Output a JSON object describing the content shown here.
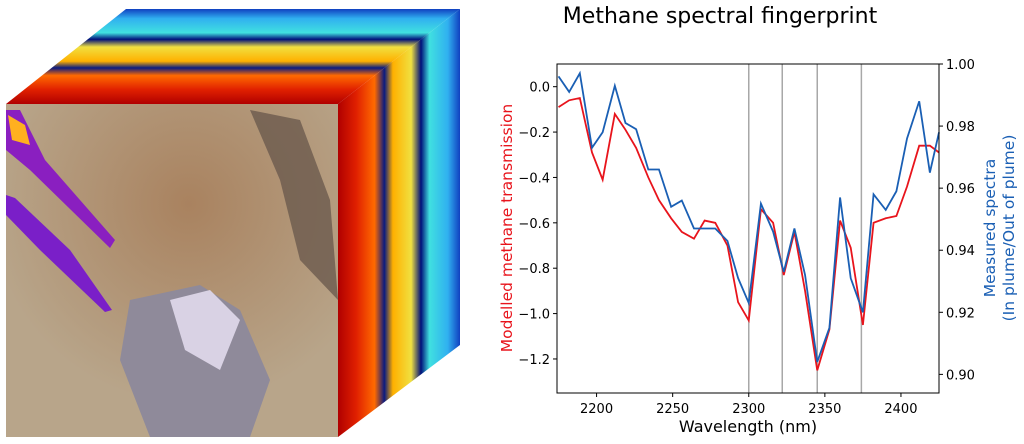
{
  "figure": {
    "cube_image": "hyperspectral data cube with satellite image front face and methane plume overlay",
    "colors": {
      "modelled": "#e8141c",
      "measured": "#1a5fb4",
      "band_lines": "#a8a8a8"
    }
  },
  "chart_data": {
    "type": "line",
    "title": "Methane spectral fingerprint",
    "xlabel": "Wavelength (nm)",
    "ylabel_left": "Modelled methane transmission",
    "ylabel_right_line1": "Measured spectra",
    "ylabel_right_line2": "(In plume/Out of plume)",
    "xlim": [
      2174,
      2425
    ],
    "ylim_left": [
      -1.35,
      0.1
    ],
    "ylim_right": [
      0.894,
      1.0
    ],
    "xticks": [
      "2200",
      "2250",
      "2300",
      "2350",
      "2400"
    ],
    "yticks_left": [
      "0.0",
      "−0.2",
      "−0.4",
      "−0.6",
      "−0.8",
      "−1.0",
      "−1.2"
    ],
    "yticks_right": [
      "1.00",
      "0.98",
      "0.96",
      "0.94",
      "0.92",
      "0.90"
    ],
    "grid": false,
    "vertical_lines": [
      2300,
      2322,
      2345,
      2374
    ],
    "x": [
      2175,
      2182,
      2189,
      2197,
      2204,
      2212,
      2219,
      2226,
      2234,
      2241,
      2249,
      2256,
      2264,
      2271,
      2278,
      2286,
      2293,
      2300,
      2308,
      2316,
      2323,
      2330,
      2337,
      2345,
      2353,
      2360,
      2367,
      2375,
      2382,
      2390,
      2397,
      2404,
      2412,
      2419,
      2425
    ],
    "series": [
      {
        "axis": "left",
        "color": "#e8141c",
        "values": [
          -0.09,
          -0.06,
          -0.05,
          -0.29,
          -0.41,
          -0.12,
          -0.19,
          -0.27,
          -0.4,
          -0.5,
          -0.58,
          -0.64,
          -0.67,
          -0.59,
          -0.6,
          -0.7,
          -0.95,
          -1.03,
          -0.54,
          -0.6,
          -0.83,
          -0.64,
          -0.9,
          -1.25,
          -1.07,
          -0.59,
          -0.71,
          -1.05,
          -0.6,
          -0.58,
          -0.57,
          -0.44,
          -0.26,
          -0.26,
          -0.29
        ]
      },
      {
        "axis": "right",
        "color": "#1a5fb4",
        "values": [
          0.996,
          0.991,
          0.997,
          0.973,
          0.978,
          0.993,
          0.981,
          0.979,
          0.966,
          0.966,
          0.954,
          0.956,
          0.947,
          0.947,
          0.947,
          0.943,
          0.931,
          0.923,
          0.955,
          0.946,
          0.933,
          0.947,
          0.932,
          0.904,
          0.915,
          0.957,
          0.931,
          0.92,
          0.958,
          0.953,
          0.959,
          0.976,
          0.988,
          0.965,
          0.978
        ]
      }
    ]
  }
}
